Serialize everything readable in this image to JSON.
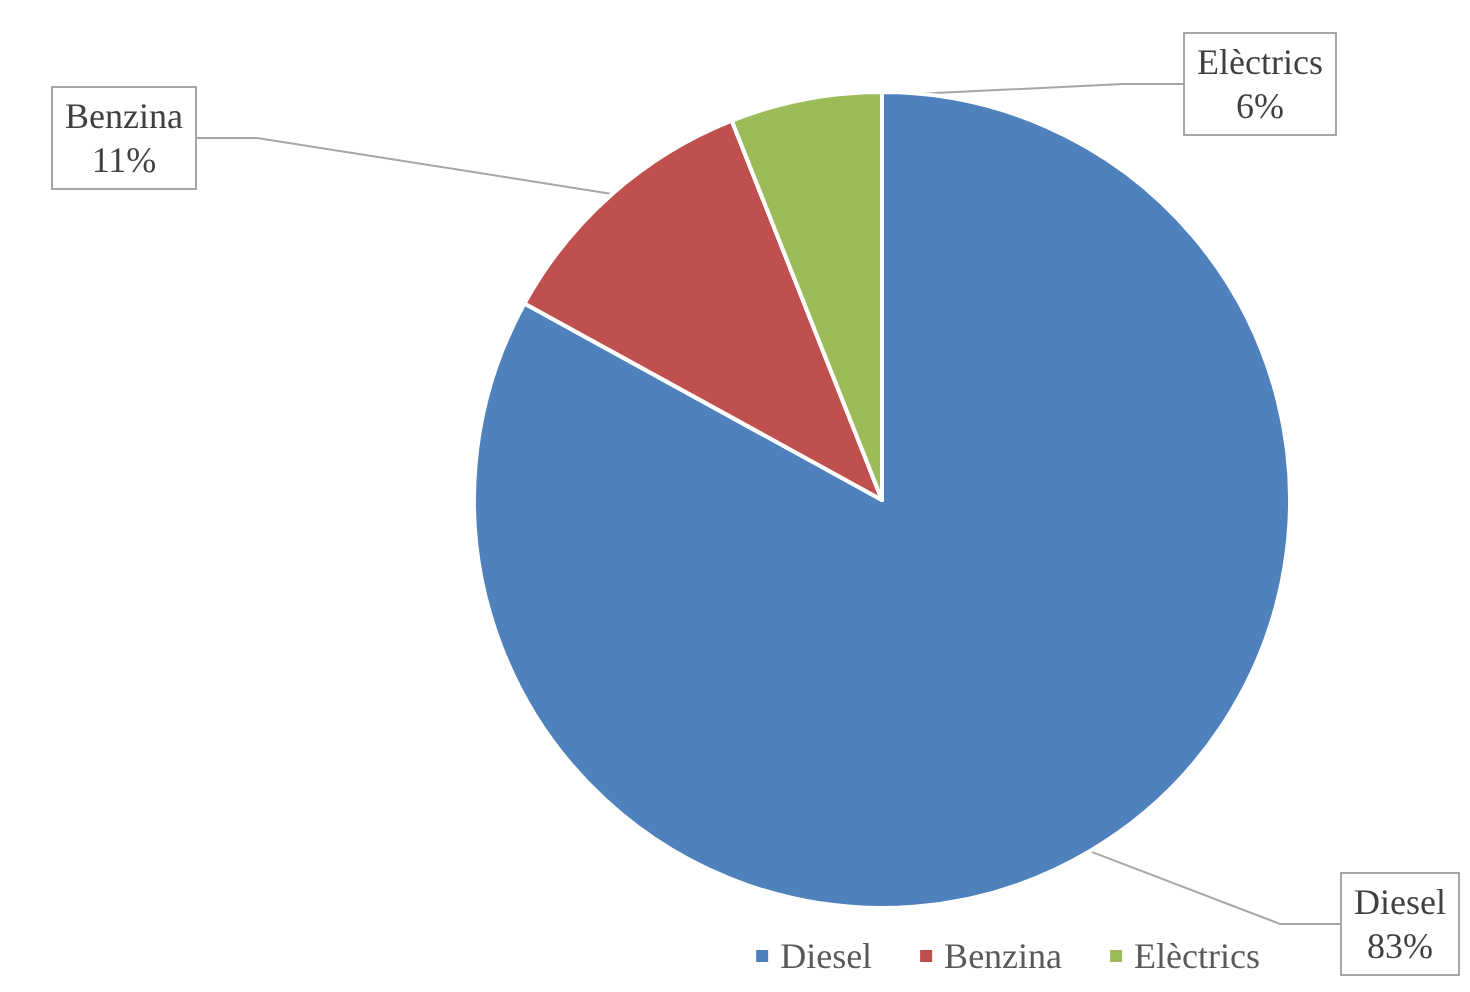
{
  "chart_data": {
    "type": "pie",
    "categories": [
      "Diesel",
      "Benzina",
      "Elèctrics"
    ],
    "values": [
      83,
      11,
      6
    ],
    "value_labels": [
      "83%",
      "11%",
      "6%"
    ],
    "colors": [
      "#4f81bd",
      "#c0504d",
      "#9bbb59"
    ],
    "legend": "bottom"
  }
}
